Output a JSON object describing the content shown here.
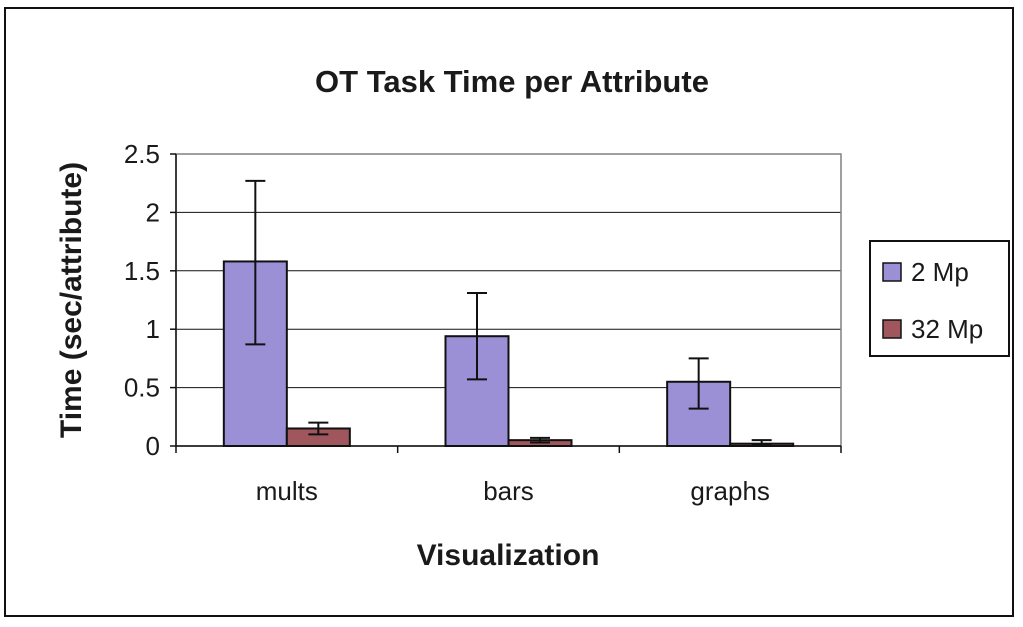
{
  "chart_data": {
    "type": "bar",
    "title": "OT Task Time per Attribute",
    "xlabel": "Visualization",
    "ylabel": "Time (sec/attribute)",
    "categories": [
      "mults",
      "bars",
      "graphs"
    ],
    "ylim": [
      0,
      2.5
    ],
    "yticks": [
      "0",
      "0.5",
      "1",
      "1.5",
      "2",
      "2.5"
    ],
    "ytick_values": [
      0,
      0.5,
      1,
      1.5,
      2,
      2.5
    ],
    "grid": true,
    "legend_position": "right",
    "series": [
      {
        "name": "2 Mp",
        "color": "#9b8fd6",
        "values": [
          1.58,
          0.94,
          0.55
        ],
        "error_low": [
          0.87,
          0.57,
          0.32
        ],
        "error_high": [
          2.27,
          1.31,
          0.75
        ]
      },
      {
        "name": "32 Mp",
        "color": "#a0565d",
        "values": [
          0.15,
          0.05,
          0.02
        ],
        "error_low": [
          0.1,
          0.03,
          0.01
        ],
        "error_high": [
          0.2,
          0.07,
          0.05
        ]
      }
    ]
  }
}
